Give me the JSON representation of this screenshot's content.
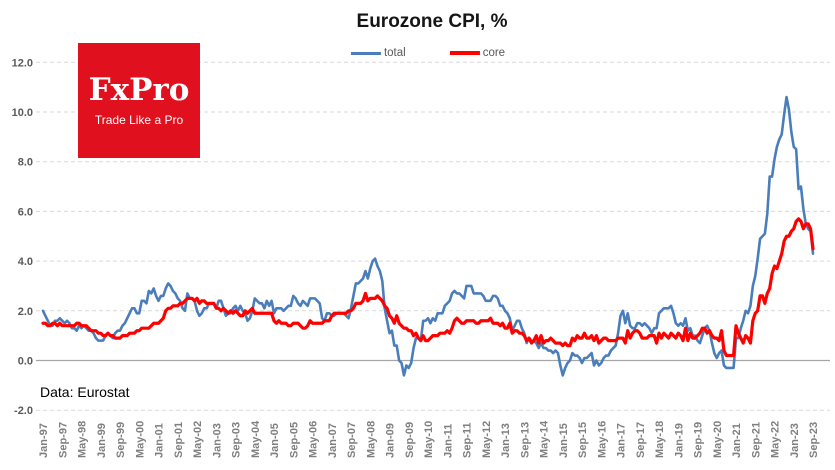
{
  "title": "Eurozone CPI, %",
  "legend": {
    "total": "total",
    "core": "core"
  },
  "logo": {
    "name": "FxPro",
    "tagline": "Trade Like a Pro",
    "bg_color": "#e0101e",
    "text_color": "#ffffff"
  },
  "source": "Data: Eurostat",
  "colors": {
    "total_line": "#4a7ebb",
    "core_line": "#ff0000",
    "gridline": "#d9d9d9",
    "zero_axis": "#a6a6a6",
    "y_tick_text": "#595959",
    "x_tick_text": "#7f7f7f",
    "title_text": "#151515"
  },
  "chart_data": {
    "type": "line",
    "title": "Eurozone CPI, %",
    "xlabel": "",
    "ylabel": "",
    "x_start": "Jan-1997",
    "x_end": "Sep-2023",
    "x_frequency": "monthly",
    "x_tick_labels": [
      "Jan-97",
      "Sep-97",
      "May-98",
      "Jan-99",
      "Sep-99",
      "May-00",
      "Jan-01",
      "Sep-01",
      "May-02",
      "Jan-03",
      "Sep-03",
      "May-04",
      "Jan-05",
      "Sep-05",
      "May-06",
      "Jan-07",
      "Sep-07",
      "May-08",
      "Jan-09",
      "Sep-09",
      "May-10",
      "Jan-11",
      "Sep-11",
      "May-12",
      "Jan-13",
      "Sep-13",
      "May-14",
      "Jan-15",
      "Sep-15",
      "May-16",
      "Jan-17",
      "Sep-17",
      "May-18",
      "Jan-19",
      "Sep-19",
      "May-20",
      "Jan-21",
      "Sep-21",
      "May-22",
      "Jan-23",
      "Sep-23"
    ],
    "x_tick_interval_months": 8,
    "ylim": [
      -2.0,
      12.0
    ],
    "yticks": [
      -2.0,
      0.0,
      2.0,
      4.0,
      6.0,
      8.0,
      10.0,
      12.0
    ],
    "grid": "horizontal-dashed",
    "legend_position": "top-center",
    "series": [
      {
        "name": "total",
        "color": "#4a7ebb",
        "values": [
          2.0,
          1.8,
          1.6,
          1.4,
          1.4,
          1.6,
          1.6,
          1.7,
          1.6,
          1.5,
          1.6,
          1.5,
          1.3,
          1.3,
          1.2,
          1.4,
          1.3,
          1.4,
          1.3,
          1.2,
          1.2,
          1.1,
          0.9,
          0.8,
          0.8,
          0.8,
          1.0,
          1.1,
          1.0,
          0.9,
          1.1,
          1.2,
          1.2,
          1.4,
          1.5,
          1.7,
          1.9,
          2.1,
          2.1,
          1.9,
          1.9,
          2.4,
          2.4,
          2.3,
          2.8,
          2.7,
          2.9,
          2.6,
          2.4,
          2.6,
          2.6,
          2.9,
          3.1,
          3.0,
          2.8,
          2.7,
          2.5,
          2.4,
          2.1,
          2.0,
          2.7,
          2.5,
          2.5,
          2.4,
          2.0,
          1.8,
          1.9,
          2.1,
          2.1,
          2.3,
          2.3,
          2.3,
          2.1,
          2.4,
          2.4,
          2.1,
          1.8,
          1.9,
          1.9,
          2.1,
          2.2,
          2.0,
          2.2,
          2.0,
          1.9,
          1.6,
          1.7,
          2.0,
          2.5,
          2.4,
          2.3,
          2.3,
          2.1,
          2.4,
          2.2,
          2.4,
          1.9,
          2.1,
          2.1,
          2.1,
          2.0,
          2.1,
          2.2,
          2.2,
          2.6,
          2.5,
          2.3,
          2.2,
          2.4,
          2.3,
          2.2,
          2.5,
          2.5,
          2.5,
          2.4,
          2.3,
          1.7,
          1.6,
          1.9,
          1.9,
          1.8,
          1.8,
          1.9,
          1.9,
          1.9,
          1.9,
          1.8,
          1.7,
          2.1,
          2.6,
          3.1,
          3.1,
          3.2,
          3.3,
          3.6,
          3.3,
          3.7,
          4.0,
          4.1,
          3.8,
          3.6,
          3.2,
          2.1,
          1.6,
          1.1,
          1.2,
          0.6,
          0.6,
          0.0,
          -0.1,
          -0.6,
          -0.2,
          -0.3,
          -0.1,
          0.5,
          0.9,
          0.9,
          0.8,
          1.6,
          1.6,
          1.7,
          1.5,
          1.7,
          1.6,
          1.9,
          1.9,
          1.9,
          2.2,
          2.3,
          2.4,
          2.7,
          2.8,
          2.7,
          2.7,
          2.6,
          2.5,
          3.0,
          3.0,
          3.0,
          2.7,
          2.7,
          2.7,
          2.7,
          2.6,
          2.4,
          2.4,
          2.4,
          2.6,
          2.6,
          2.5,
          2.2,
          2.2,
          2.0,
          1.9,
          1.7,
          1.2,
          1.4,
          1.6,
          1.6,
          1.3,
          1.1,
          0.7,
          0.9,
          0.8,
          0.8,
          0.7,
          0.5,
          0.7,
          0.5,
          0.5,
          0.4,
          0.4,
          0.3,
          0.4,
          0.3,
          -0.2,
          -0.6,
          -0.3,
          -0.1,
          0.0,
          0.3,
          0.2,
          0.2,
          0.1,
          -0.1,
          0.1,
          0.1,
          0.2,
          0.3,
          -0.2,
          0.0,
          -0.2,
          -0.1,
          0.1,
          0.2,
          0.2,
          0.4,
          0.5,
          0.6,
          1.1,
          1.8,
          2.0,
          1.5,
          1.9,
          1.4,
          1.3,
          1.3,
          1.5,
          1.5,
          1.4,
          1.5,
          1.4,
          1.3,
          1.1,
          1.3,
          1.3,
          1.9,
          2.0,
          2.1,
          2.1,
          2.1,
          2.2,
          1.9,
          1.5,
          1.4,
          1.5,
          1.4,
          1.7,
          1.2,
          1.3,
          1.0,
          1.0,
          0.8,
          0.7,
          1.0,
          1.3,
          1.4,
          1.2,
          0.7,
          0.3,
          0.1,
          0.3,
          0.4,
          -0.2,
          -0.3,
          -0.3,
          -0.3,
          -0.3,
          0.9,
          0.9,
          1.3,
          1.6,
          2.0,
          1.9,
          2.2,
          3.0,
          3.4,
          4.1,
          4.9,
          5.0,
          5.1,
          5.9,
          7.4,
          7.4,
          8.1,
          8.6,
          8.9,
          9.1,
          9.9,
          10.6,
          10.1,
          9.2,
          8.6,
          8.5,
          6.9,
          7.0,
          6.1,
          5.5,
          5.3,
          5.2,
          4.3
        ]
      },
      {
        "name": "core",
        "color": "#ff0000",
        "values": [
          1.5,
          1.5,
          1.4,
          1.4,
          1.5,
          1.5,
          1.4,
          1.5,
          1.4,
          1.4,
          1.4,
          1.4,
          1.4,
          1.4,
          1.5,
          1.5,
          1.4,
          1.4,
          1.4,
          1.3,
          1.2,
          1.2,
          1.2,
          1.1,
          1.1,
          1.0,
          1.0,
          1.1,
          1.0,
          1.0,
          0.9,
          0.9,
          0.9,
          1.0,
          1.0,
          1.0,
          1.1,
          1.1,
          1.1,
          1.2,
          1.2,
          1.3,
          1.3,
          1.3,
          1.3,
          1.4,
          1.5,
          1.5,
          1.5,
          1.6,
          1.7,
          2.0,
          2.1,
          2.1,
          2.2,
          2.2,
          2.2,
          2.3,
          2.3,
          2.4,
          2.5,
          2.5,
          2.5,
          2.4,
          2.5,
          2.3,
          2.4,
          2.4,
          2.3,
          2.3,
          2.3,
          2.3,
          2.1,
          2.1,
          2.0,
          2.1,
          2.0,
          1.9,
          2.0,
          1.9,
          2.0,
          1.9,
          1.8,
          1.8,
          2.0,
          1.9,
          2.0,
          2.1,
          1.9,
          1.9,
          1.9,
          1.9,
          1.9,
          1.9,
          1.9,
          1.9,
          1.6,
          1.5,
          1.6,
          1.5,
          1.5,
          1.5,
          1.4,
          1.4,
          1.5,
          1.5,
          1.5,
          1.4,
          1.3,
          1.3,
          1.4,
          1.6,
          1.5,
          1.5,
          1.5,
          1.5,
          1.5,
          1.6,
          1.6,
          1.6,
          1.8,
          1.9,
          1.9,
          1.9,
          1.9,
          1.9,
          1.9,
          2.0,
          2.0,
          2.1,
          2.3,
          2.3,
          2.3,
          2.4,
          2.7,
          2.4,
          2.5,
          2.5,
          2.5,
          2.6,
          2.5,
          2.4,
          2.2,
          2.1,
          1.8,
          1.7,
          1.5,
          1.8,
          1.5,
          1.4,
          1.3,
          1.3,
          1.2,
          1.2,
          1.0,
          1.1,
          0.9,
          0.8,
          1.0,
          0.8,
          0.8,
          0.9,
          1.0,
          1.0,
          1.0,
          1.1,
          1.1,
          1.1,
          1.2,
          1.1,
          1.3,
          1.6,
          1.7,
          1.6,
          1.5,
          1.5,
          1.6,
          1.6,
          1.6,
          1.6,
          1.5,
          1.5,
          1.6,
          1.6,
          1.6,
          1.6,
          1.7,
          1.5,
          1.5,
          1.5,
          1.4,
          1.5,
          1.3,
          1.3,
          1.5,
          1.1,
          1.2,
          1.2,
          1.1,
          1.1,
          1.0,
          0.8,
          0.9,
          0.7,
          0.8,
          1.0,
          0.7,
          1.0,
          0.7,
          0.8,
          0.8,
          0.9,
          0.8,
          0.7,
          0.7,
          0.7,
          0.6,
          0.7,
          0.6,
          0.6,
          0.9,
          0.8,
          1.0,
          0.9,
          0.9,
          1.1,
          0.9,
          0.9,
          1.0,
          0.8,
          1.0,
          0.7,
          0.8,
          0.9,
          0.9,
          0.8,
          0.8,
          0.8,
          0.8,
          0.9,
          0.9,
          0.9,
          0.7,
          1.2,
          0.9,
          1.1,
          1.2,
          1.2,
          1.1,
          0.9,
          0.9,
          0.9,
          1.0,
          1.0,
          1.0,
          0.7,
          1.1,
          0.9,
          1.1,
          1.0,
          0.9,
          1.1,
          1.0,
          0.9,
          1.1,
          1.0,
          0.8,
          1.3,
          0.8,
          1.1,
          0.9,
          0.9,
          1.0,
          1.1,
          1.3,
          1.3,
          1.1,
          1.2,
          1.0,
          0.9,
          0.9,
          0.8,
          1.2,
          0.4,
          0.2,
          0.2,
          0.2,
          0.2,
          1.4,
          1.1,
          0.9,
          0.7,
          1.0,
          0.9,
          0.7,
          1.6,
          1.9,
          2.0,
          2.6,
          2.6,
          2.3,
          2.7,
          2.9,
          3.5,
          3.8,
          3.7,
          4.0,
          4.3,
          4.8,
          5.0,
          5.0,
          5.2,
          5.3,
          5.6,
          5.7,
          5.6,
          5.3,
          5.5,
          5.5,
          5.3,
          4.5
        ]
      }
    ],
    "source": "Data: Eurostat"
  }
}
